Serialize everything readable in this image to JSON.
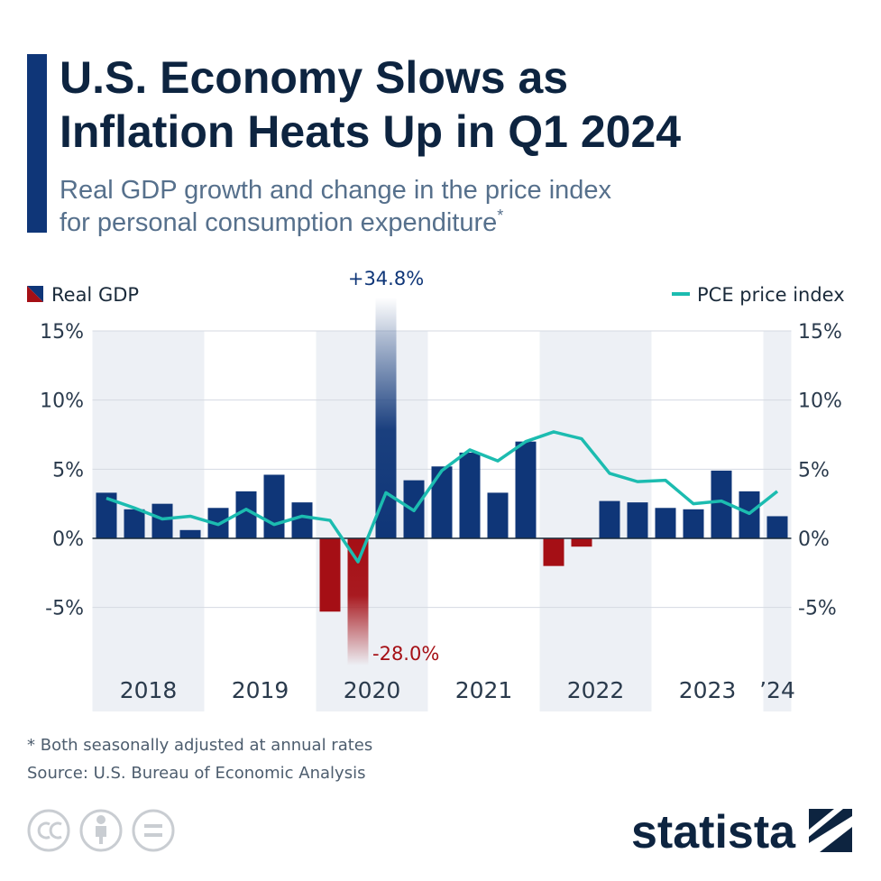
{
  "chart_data": {
    "type": "bar-line",
    "title": [
      "U.S. Economy Slows as",
      "Inflation Heats Up in Q1 2024"
    ],
    "subtitle": [
      "Real GDP growth and change in the price index",
      "for personal consumption expenditure"
    ],
    "subtitle_mark": "*",
    "categories": [
      null,
      null,
      null,
      null,
      null,
      null,
      null,
      null,
      null,
      null,
      null,
      null,
      null,
      null,
      null,
      null,
      null,
      null,
      null,
      null,
      null,
      null,
      null,
      null,
      null
    ],
    "year_labels": [
      "2018",
      "2019",
      "2020",
      "2021",
      "2022",
      "2023",
      "’24"
    ],
    "series": [
      {
        "name": "Real GDP",
        "type": "bar",
        "color": "#0f3678",
        "negative_color": "#a50f15",
        "values": [
          3.3,
          2.1,
          2.5,
          0.6,
          2.2,
          3.4,
          4.6,
          2.6,
          -5.3,
          -28.0,
          34.8,
          4.2,
          5.2,
          6.2,
          3.3,
          7.0,
          -2.0,
          -0.6,
          2.7,
          2.6,
          2.2,
          2.1,
          4.9,
          3.4,
          1.6
        ],
        "value_labels": [
          null,
          null,
          null,
          null,
          null,
          null,
          null,
          null,
          null,
          "-28.0%",
          "+34.8%",
          null,
          null,
          null,
          null,
          null,
          null,
          null,
          null,
          null,
          null,
          null,
          null,
          null,
          null
        ]
      },
      {
        "name": "PCE price index",
        "type": "line",
        "color": "#1cbcb0",
        "axis": "y2",
        "values": [
          2.9,
          2.2,
          1.4,
          1.6,
          1.0,
          2.1,
          1.0,
          1.6,
          1.3,
          -1.7,
          3.3,
          2.0,
          4.9,
          6.4,
          5.6,
          7.0,
          7.7,
          7.2,
          4.7,
          4.1,
          4.2,
          2.5,
          2.7,
          1.8,
          3.4
        ]
      }
    ],
    "ylim": [
      -12,
      15
    ],
    "yticks": [
      {
        "value": -5,
        "label": "-5%"
      },
      {
        "value": 0,
        "label": "0%"
      },
      {
        "value": 5,
        "label": "5%"
      },
      {
        "value": 10,
        "label": "10%"
      },
      {
        "value": 15,
        "label": "15%"
      }
    ],
    "y2lim": [
      -12,
      15
    ],
    "y2ticks": [
      {
        "value": -5,
        "label": "-5%"
      },
      {
        "value": 0,
        "label": "0%"
      },
      {
        "value": 5,
        "label": "5%"
      },
      {
        "value": 10,
        "label": "10%"
      },
      {
        "value": 15,
        "label": "15%"
      }
    ],
    "grid": true,
    "footnote": "* Both seasonally adjusted at annual rates",
    "source": "Source: U.S. Bureau of Economic Analysis",
    "brand": "statista"
  }
}
